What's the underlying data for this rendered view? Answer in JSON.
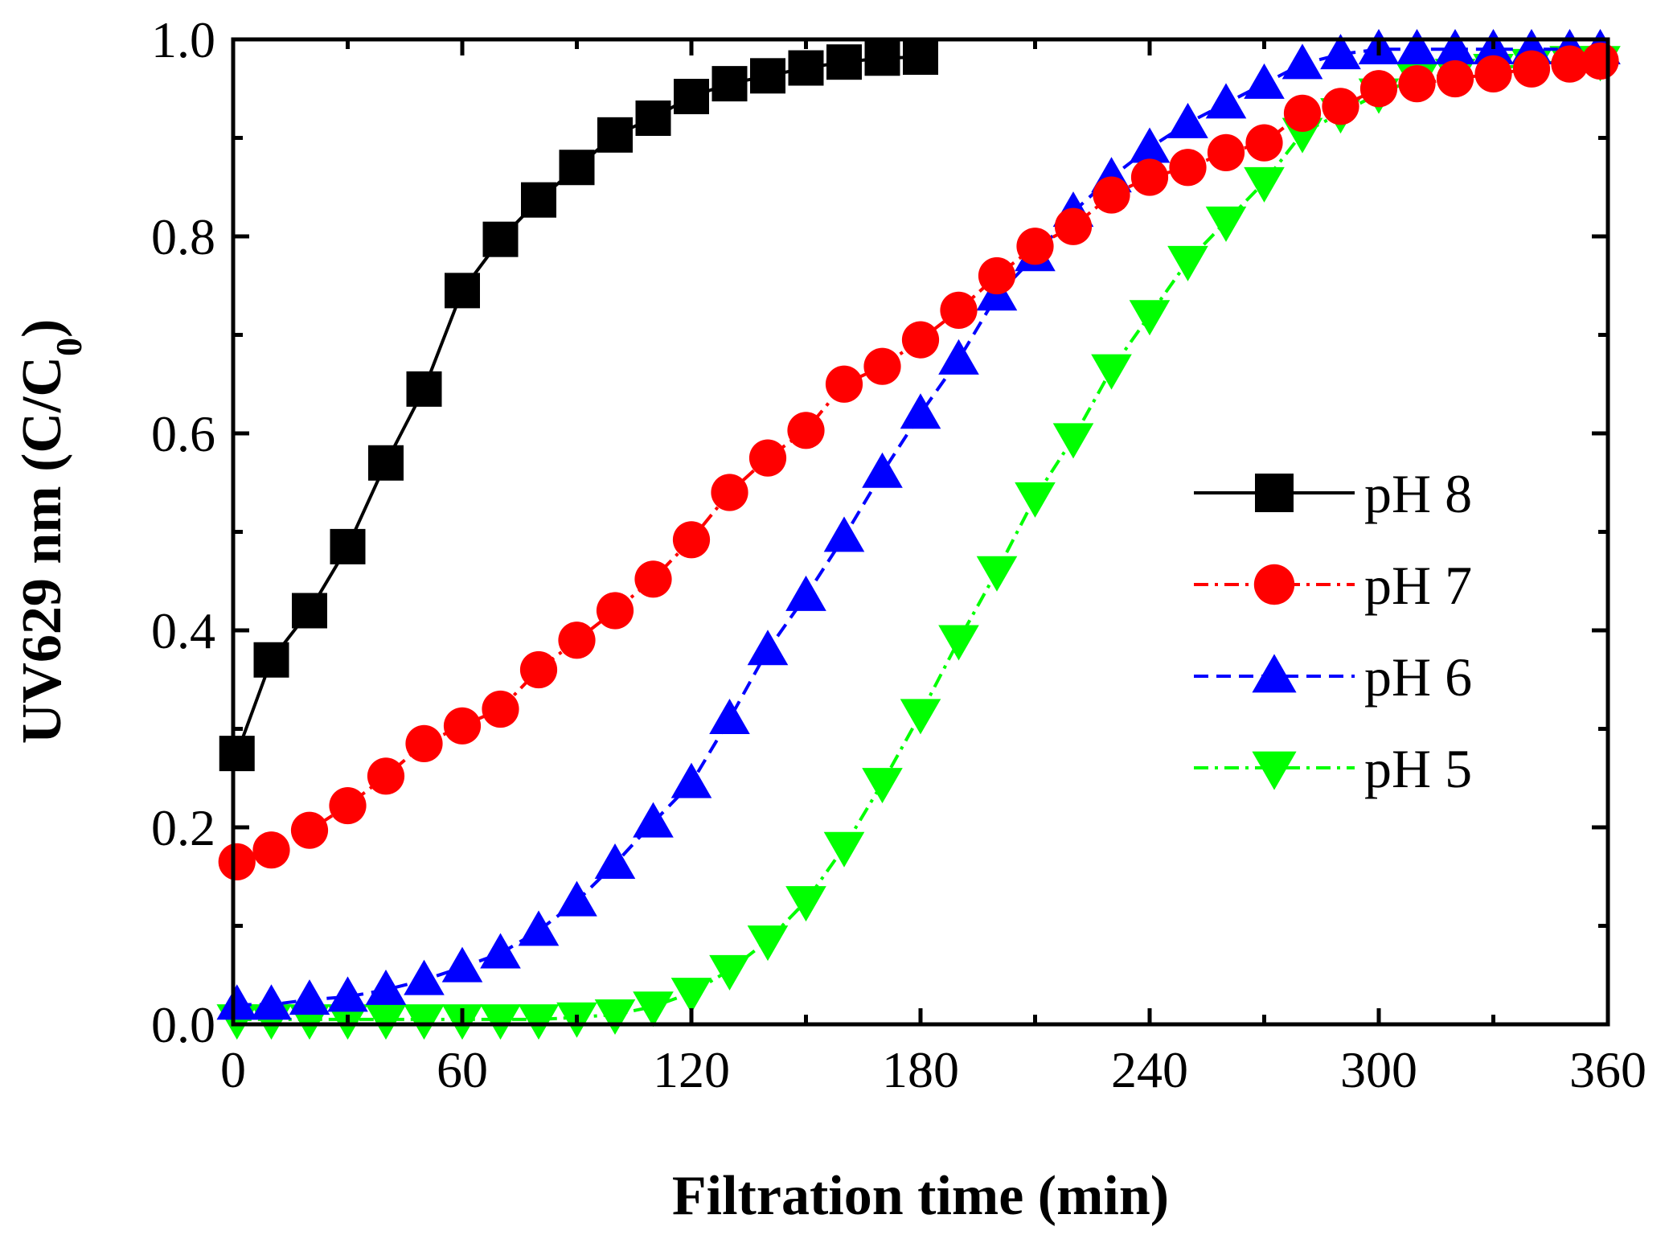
{
  "chart_data": {
    "type": "line",
    "title": "",
    "xlabel": "Filtration time (min)",
    "ylabel": {
      "main": "UV629 nm (C/C",
      "subscript": "0",
      "suffix": ")"
    },
    "xlim": [
      0,
      360
    ],
    "ylim": [
      0.0,
      1.0
    ],
    "xticks": [
      0,
      60,
      120,
      180,
      240,
      300,
      360
    ],
    "xtick_labels": [
      "0",
      "60",
      "120",
      "180",
      "240",
      "300",
      "360"
    ],
    "yticks": [
      0.0,
      0.2,
      0.4,
      0.6,
      0.8,
      1.0
    ],
    "ytick_labels": [
      "0.0",
      "0.2",
      "0.4",
      "0.6",
      "0.8",
      "1.0"
    ],
    "grid": false,
    "legend_position": "right-middle",
    "series": [
      {
        "name": "pH 8",
        "color": "#000000",
        "marker": "square",
        "line_style": "solid",
        "x": [
          1,
          10,
          20,
          30,
          40,
          50,
          60,
          70,
          80,
          90,
          100,
          110,
          120,
          130,
          140,
          150,
          160,
          170,
          180
        ],
        "values": [
          0.275,
          0.37,
          0.42,
          0.485,
          0.57,
          0.645,
          0.745,
          0.797,
          0.837,
          0.87,
          0.903,
          0.92,
          0.942,
          0.955,
          0.963,
          0.971,
          0.977,
          0.981,
          0.982
        ]
      },
      {
        "name": "pH 7",
        "color": "#ff0000",
        "marker": "circle",
        "line_style": "dash-dot",
        "x": [
          1,
          10,
          20,
          30,
          40,
          50,
          60,
          70,
          80,
          90,
          100,
          110,
          120,
          130,
          140,
          150,
          160,
          170,
          180,
          190,
          200,
          210,
          220,
          230,
          240,
          250,
          260,
          270,
          280,
          290,
          300,
          310,
          320,
          330,
          340,
          350,
          358
        ],
        "values": [
          0.165,
          0.177,
          0.197,
          0.222,
          0.252,
          0.285,
          0.303,
          0.32,
          0.36,
          0.39,
          0.42,
          0.452,
          0.492,
          0.54,
          0.575,
          0.603,
          0.65,
          0.668,
          0.695,
          0.725,
          0.76,
          0.79,
          0.81,
          0.842,
          0.86,
          0.87,
          0.885,
          0.895,
          0.925,
          0.932,
          0.95,
          0.955,
          0.96,
          0.965,
          0.97,
          0.975,
          0.978
        ]
      },
      {
        "name": "pH 6",
        "color": "#0000ff",
        "marker": "triangle-up",
        "line_style": "dashed",
        "x": [
          1,
          10,
          20,
          30,
          40,
          50,
          60,
          70,
          80,
          90,
          100,
          110,
          120,
          130,
          140,
          150,
          160,
          170,
          180,
          190,
          200,
          210,
          220,
          230,
          240,
          250,
          260,
          270,
          280,
          290,
          300,
          310,
          320,
          330,
          340,
          350,
          358
        ],
        "values": [
          0.02,
          0.02,
          0.025,
          0.028,
          0.035,
          0.045,
          0.058,
          0.072,
          0.095,
          0.125,
          0.163,
          0.205,
          0.245,
          0.31,
          0.38,
          0.435,
          0.495,
          0.56,
          0.62,
          0.675,
          0.74,
          0.78,
          0.825,
          0.86,
          0.89,
          0.915,
          0.935,
          0.955,
          0.975,
          0.985,
          0.99,
          0.99,
          0.99,
          0.99,
          0.99,
          0.99,
          0.99
        ]
      },
      {
        "name": "pH 5",
        "color": "#00ff00",
        "marker": "triangle-down",
        "line_style": "dash-dot",
        "x": [
          1,
          10,
          20,
          30,
          40,
          50,
          60,
          70,
          80,
          90,
          100,
          110,
          120,
          130,
          140,
          150,
          160,
          170,
          180,
          190,
          200,
          210,
          220,
          230,
          240,
          250,
          260,
          270,
          280,
          290,
          300,
          310,
          320,
          330,
          340,
          350,
          358
        ],
        "values": [
          0.005,
          0.005,
          0.005,
          0.005,
          0.005,
          0.005,
          0.005,
          0.005,
          0.005,
          0.007,
          0.01,
          0.018,
          0.032,
          0.055,
          0.085,
          0.125,
          0.18,
          0.245,
          0.315,
          0.39,
          0.46,
          0.535,
          0.595,
          0.665,
          0.72,
          0.775,
          0.815,
          0.855,
          0.905,
          0.925,
          0.945,
          0.96,
          0.965,
          0.97,
          0.975,
          0.978,
          0.978
        ]
      }
    ]
  }
}
